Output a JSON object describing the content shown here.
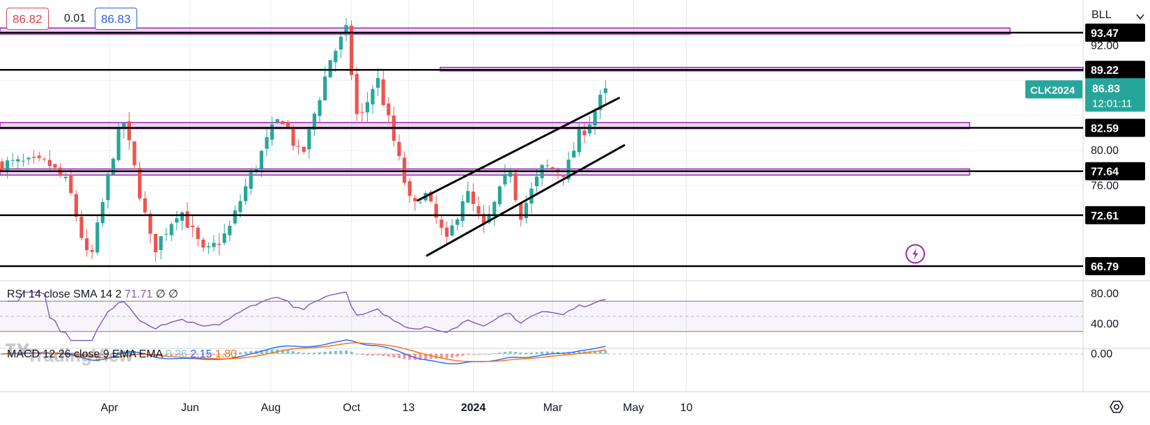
{
  "header": {
    "bid": "86.82",
    "spread": "0.01",
    "ask": "86.83",
    "scale_unit": "BLL"
  },
  "symbol": {
    "name": "CLK2024",
    "last": "86.83",
    "countdown": "12:01:11",
    "color": "#26a69a"
  },
  "colors": {
    "up": "#26a69a",
    "down": "#ef5350",
    "zone": "#9c27b0",
    "level_line": "#000000",
    "rsi": "#7e57c2",
    "macd": "#2962ff",
    "signal": "#ff6d00"
  },
  "indicators": {
    "rsi": {
      "label": "RSI 14 close SMA 14 2",
      "value": "71.71",
      "extra": "∅ ∅",
      "upper": 70,
      "lower": 30,
      "mid": 50,
      "axis_ticks": [
        "80.00",
        "40.00"
      ]
    },
    "macd": {
      "label": "MACD 12 26 close 9 EMA EMA",
      "hist": "0.36",
      "macd": "2.15",
      "signal": "1.80",
      "axis_ticks": [
        "0.00"
      ]
    }
  },
  "watermark": "TradingView",
  "chart_data": {
    "type": "candlestick",
    "title": "",
    "xlabel": "",
    "ylabel": "",
    "x_ticks": [
      "Apr",
      "Jun",
      "Aug",
      "Oct",
      "13",
      "2024",
      "Mar",
      "May",
      "10"
    ],
    "y_ticks": [
      "92.00",
      "80.00",
      "76.00"
    ],
    "ylim": [
      65.2,
      97.2
    ],
    "grid": true,
    "levels": [
      {
        "label": "93.47",
        "value": 93.47
      },
      {
        "label": "89.22",
        "value": 89.22
      },
      {
        "label": "82.59",
        "value": 82.59
      },
      {
        "label": "77.64",
        "value": 77.64
      },
      {
        "label": "72.61",
        "value": 72.61
      },
      {
        "label": "66.79",
        "value": 66.79
      }
    ],
    "zones": [
      {
        "from": 93.3,
        "to": 94.0
      },
      {
        "from": 89.1,
        "to": 89.5
      },
      {
        "from": 82.5,
        "to": 83.2
      },
      {
        "from": 77.2,
        "to": 77.9
      }
    ],
    "channel": {
      "upper": [
        {
          "x": "2023-11-20",
          "y": 74.3
        },
        {
          "x": "2024-04-20",
          "y": 86.0
        }
      ],
      "lower": [
        {
          "x": "2023-11-27",
          "y": 68.0
        },
        {
          "x": "2024-04-24",
          "y": 80.6
        }
      ]
    },
    "anchors": [
      {
        "date": "2023-02-14",
        "price": 78.5
      },
      {
        "date": "2023-03-01",
        "price": 76.0
      },
      {
        "date": "2023-03-17",
        "price": 66.8
      },
      {
        "date": "2023-04-05",
        "price": 80.5
      },
      {
        "date": "2023-04-12",
        "price": 83.2
      },
      {
        "date": "2023-05-04",
        "price": 68.5
      },
      {
        "date": "2023-05-24",
        "price": 73.5
      },
      {
        "date": "2023-06-12",
        "price": 68.0
      },
      {
        "date": "2023-06-30",
        "price": 70.8
      },
      {
        "date": "2023-07-12",
        "price": 75.5
      },
      {
        "date": "2023-08-01",
        "price": 82.0
      },
      {
        "date": "2023-08-09",
        "price": 84.0
      },
      {
        "date": "2023-08-24",
        "price": 79.0
      },
      {
        "date": "2023-09-15",
        "price": 90.5
      },
      {
        "date": "2023-09-27",
        "price": 93.6
      },
      {
        "date": "2023-10-06",
        "price": 82.8
      },
      {
        "date": "2023-10-20",
        "price": 88.5
      },
      {
        "date": "2023-11-16",
        "price": 73.0
      },
      {
        "date": "2023-11-24",
        "price": 75.5
      },
      {
        "date": "2023-12-12",
        "price": 69.4
      },
      {
        "date": "2023-12-26",
        "price": 75.5
      },
      {
        "date": "2024-01-09",
        "price": 71.0
      },
      {
        "date": "2024-01-29",
        "price": 78.0
      },
      {
        "date": "2024-02-05",
        "price": 72.5
      },
      {
        "date": "2024-02-23",
        "price": 78.2
      },
      {
        "date": "2024-03-11",
        "price": 77.5
      },
      {
        "date": "2024-03-20",
        "price": 81.5
      },
      {
        "date": "2024-03-28",
        "price": 83.1
      },
      {
        "date": "2024-04-08",
        "price": 86.4
      },
      {
        "date": "2024-04-12",
        "price": 86.8
      }
    ]
  }
}
